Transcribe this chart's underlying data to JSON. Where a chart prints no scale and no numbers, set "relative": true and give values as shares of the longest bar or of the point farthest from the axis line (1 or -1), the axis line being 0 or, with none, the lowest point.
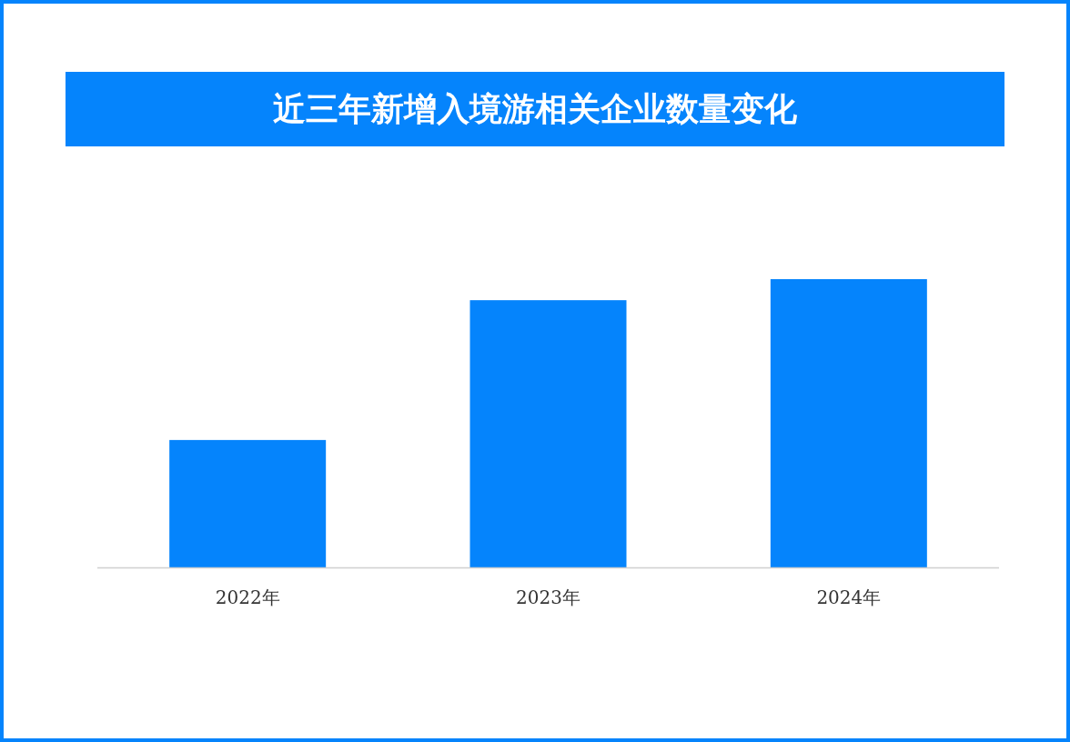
{
  "chart_data": {
    "type": "bar",
    "title": "近三年新增入境游相关企业数量变化",
    "categories": [
      "2022年",
      "2023年",
      "2024年"
    ],
    "values": [
      0.442,
      0.927,
      1
    ],
    "color": "#0584fc",
    "relative": true
  }
}
